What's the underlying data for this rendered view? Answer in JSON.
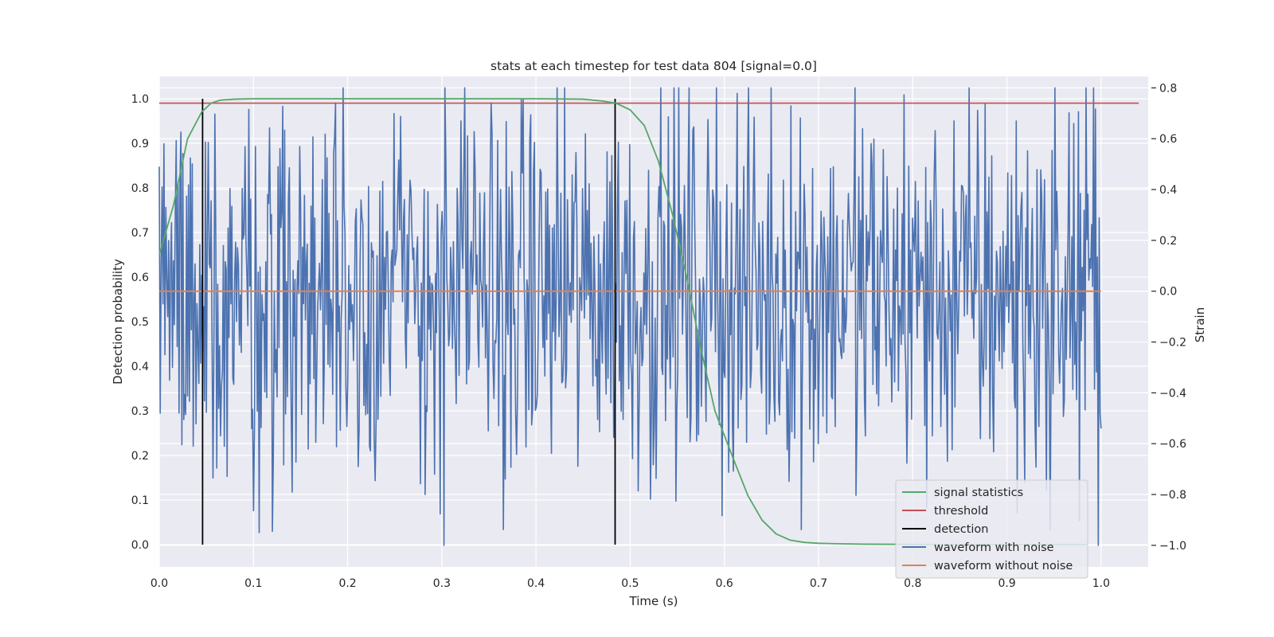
{
  "chart_data": {
    "type": "line",
    "title": "stats at each timestep for test data 804 [signal=0.0]",
    "xlabel": "Time (s)",
    "ylabel": "Detection probability",
    "y2label": "Strain",
    "xlim": [
      0.0,
      1.05
    ],
    "ylim": [
      -0.05,
      1.05
    ],
    "y2lim": [
      -1.085,
      0.845
    ],
    "grid": true,
    "legend_position": "lower-right",
    "background_color": "#eaeaf2",
    "xticks": [
      "0.0",
      "0.1",
      "0.2",
      "0.3",
      "0.4",
      "0.5",
      "0.6",
      "0.7",
      "0.8",
      "0.9",
      "1.0"
    ],
    "yticks": [
      "0.0",
      "0.1",
      "0.2",
      "0.3",
      "0.4",
      "0.5",
      "0.6",
      "0.7",
      "0.8",
      "0.9",
      "1.0"
    ],
    "y2ticks": [
      "−1.0",
      "−0.8",
      "−0.6",
      "−0.4",
      "−0.2",
      "0.0",
      "0.2",
      "0.4",
      "0.6",
      "0.8"
    ],
    "series": [
      {
        "name": "signal statistics",
        "axis": "left",
        "color": "#55a868",
        "x": [
          0.0,
          0.015,
          0.03,
          0.045,
          0.055,
          0.065,
          0.08,
          0.1,
          0.2,
          0.3,
          0.4,
          0.45,
          0.47,
          0.485,
          0.5,
          0.515,
          0.53,
          0.545,
          0.56,
          0.575,
          0.59,
          0.61,
          0.625,
          0.64,
          0.655,
          0.67,
          0.685,
          0.7,
          0.72,
          0.75,
          0.8,
          0.9,
          0.985
        ],
        "y": [
          0.65,
          0.76,
          0.91,
          0.97,
          0.99,
          0.997,
          0.999,
          1.0,
          1.0,
          1.0,
          1.0,
          0.999,
          0.995,
          0.99,
          0.975,
          0.94,
          0.86,
          0.74,
          0.6,
          0.44,
          0.3,
          0.19,
          0.11,
          0.055,
          0.024,
          0.01,
          0.005,
          0.003,
          0.002,
          0.001,
          0.0005,
          0.0003,
          0.0002
        ]
      },
      {
        "name": "threshold",
        "axis": "left",
        "color": "#c44e52",
        "x": [
          0.0,
          1.04
        ],
        "y": [
          0.99,
          0.99
        ]
      },
      {
        "name": "detection",
        "axis": "left",
        "color": "#000000",
        "x_positions": [
          0.046,
          0.484
        ],
        "y_range": [
          0.0,
          1.0
        ]
      },
      {
        "name": "waveform with noise",
        "axis": "right",
        "color": "#4c72b0",
        "x_range": [
          0.0,
          1.0
        ],
        "n_points": 1000,
        "y_min": -1.0,
        "y_max": 0.8,
        "sample_y": [
          0.49,
          -0.48,
          0.09,
          0.41,
          -0.05,
          0.58,
          -0.25,
          0.33,
          0.05,
          -0.1,
          0.2,
          -0.35,
          0.1,
          0.27,
          -0.3,
          0.12
        ],
        "peaks": [
          {
            "x": 0.195,
            "y": 0.8
          },
          {
            "x": 0.592,
            "y": 0.8
          },
          {
            "x": 0.302,
            "y": -1.0
          },
          {
            "x": 0.106,
            "y": -0.95
          },
          {
            "x": 0.946,
            "y": -0.94
          }
        ]
      },
      {
        "name": "waveform without noise",
        "axis": "right",
        "color": "#dd8452",
        "x": [
          0.0,
          1.0
        ],
        "y": [
          0.0,
          0.0
        ]
      }
    ],
    "legend": [
      {
        "label": "signal statistics",
        "color": "#55a868"
      },
      {
        "label": "threshold",
        "color": "#c44e52"
      },
      {
        "label": "detection",
        "color": "#000000"
      },
      {
        "label": "waveform with noise",
        "color": "#4c72b0"
      },
      {
        "label": "waveform without noise",
        "color": "#dd8452"
      }
    ]
  }
}
